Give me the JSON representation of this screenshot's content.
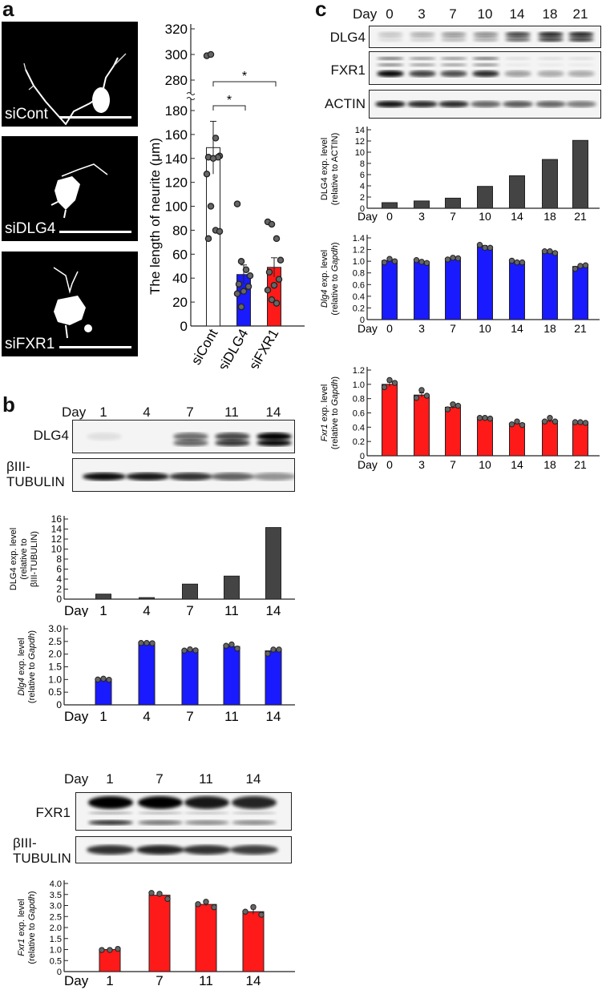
{
  "panels": {
    "a": {
      "letter": "a"
    },
    "b": {
      "letter": "b"
    },
    "c": {
      "letter": "c"
    }
  },
  "micrographs": [
    {
      "label": "siCont"
    },
    {
      "label": "siDLG4"
    },
    {
      "label": "siFXR1"
    }
  ],
  "blots": {
    "b_dlg4": {
      "day_label": "Day",
      "days": [
        "1",
        "4",
        "7",
        "11",
        "14"
      ],
      "rows": [
        "DLG4",
        "βIII-\nTUBULIN"
      ]
    },
    "b_fxr1": {
      "day_label": "Day",
      "days": [
        "1",
        "7",
        "11",
        "14"
      ],
      "rows": [
        "FXR1",
        "βIII-\nTUBULIN"
      ]
    },
    "c": {
      "day_label": "Day",
      "days": [
        "0",
        "3",
        "7",
        "10",
        "14",
        "18",
        "21"
      ],
      "rows": [
        "DLG4",
        "FXR1",
        "ACTIN"
      ]
    }
  },
  "colors": {
    "blue": "#1a1aff",
    "red": "#ff1a1a",
    "dark": "#444444",
    "dot": "#666666"
  },
  "chart_data": [
    {
      "id": "a_neurite",
      "type": "bar",
      "title": "",
      "ylabel": "The length of neurite (μm)",
      "categories": [
        "siCont",
        "siDLG4",
        "siFXR1"
      ],
      "values": [
        149,
        43,
        49
      ],
      "errors": [
        22,
        8,
        8
      ],
      "colors": [
        "#ffffff",
        "#1a1aff",
        "#ff1a1a"
      ],
      "points": [
        [
          299,
          300,
          157,
          142,
          141,
          141,
          140,
          127,
          100,
          80,
          79,
          73
        ],
        [
          102,
          54,
          47,
          42,
          35,
          33,
          29,
          27,
          16
        ],
        [
          87,
          85,
          73,
          55,
          45,
          39,
          34,
          30,
          22,
          19
        ]
      ],
      "yticks_lower": [
        0,
        20,
        40,
        60,
        80,
        100,
        120,
        140,
        160,
        180
      ],
      "yticks_upper": [
        280,
        300,
        320
      ],
      "axis_break": true,
      "significance": [
        {
          "from": "siCont",
          "to": "siDLG4",
          "label": "*"
        },
        {
          "from": "siCont",
          "to": "siFXR1",
          "label": "*"
        }
      ]
    },
    {
      "id": "b_dlg4_protein",
      "type": "bar",
      "ylabel": "DLG4 exp. level (relative to βIII-TUBULIN)",
      "xlabel": "Day",
      "categories": [
        "1",
        "4",
        "7",
        "11",
        "14"
      ],
      "values": [
        1.0,
        0.3,
        3.0,
        4.6,
        14.3
      ],
      "ylim": [
        0,
        16
      ],
      "yticks": [
        0,
        2,
        4,
        6,
        8,
        10,
        12,
        14,
        16
      ]
    },
    {
      "id": "b_dlg4_mrna",
      "type": "bar",
      "ylabel": "Dlg4 exp. level (relative to Gapdh)",
      "xlabel": "Day",
      "categories": [
        "1",
        "4",
        "7",
        "11",
        "14"
      ],
      "values": [
        1.0,
        2.43,
        2.16,
        2.3,
        2.13
      ],
      "errors": [
        0.02,
        0.01,
        0.02,
        0.04,
        0.05
      ],
      "points": [
        [
          1.0,
          1.03,
          0.99
        ],
        [
          2.44,
          2.44,
          2.43
        ],
        [
          2.14,
          2.19,
          2.15
        ],
        [
          2.33,
          2.38,
          2.22
        ],
        [
          2.02,
          2.18,
          2.18
        ]
      ],
      "ylim": [
        0,
        3.0
      ],
      "yticks": [
        "0",
        "0.5",
        "1.0",
        "1.5",
        "2.0",
        "2.5",
        "3.0"
      ]
    },
    {
      "id": "b_fxr1_mrna",
      "type": "bar",
      "ylabel": "Fxr1 exp. level (relative to Gapdh)",
      "xlabel": "Day",
      "categories": [
        "1",
        "7",
        "11",
        "14"
      ],
      "values": [
        1.0,
        3.47,
        3.05,
        2.72
      ],
      "errors": [
        0.02,
        0.08,
        0.07,
        0.12
      ],
      "points": [
        [
          0.98,
          0.98,
          1.03
        ],
        [
          3.57,
          3.53,
          3.3
        ],
        [
          3.06,
          3.17,
          2.92
        ],
        [
          2.72,
          2.93,
          2.58
        ]
      ],
      "ylim": [
        0,
        4.0
      ],
      "yticks": [
        "0",
        "0.5",
        "1.0",
        "1.5",
        "2.0",
        "2.5",
        "3.0",
        "3.5",
        "4.0"
      ]
    },
    {
      "id": "c_dlg4_protein",
      "type": "bar",
      "ylabel": "DLG4 exp. level (relative to ACTIN)",
      "xlabel": "Day",
      "categories": [
        "0",
        "3",
        "7",
        "10",
        "14",
        "18",
        "21"
      ],
      "values": [
        1.0,
        1.3,
        1.8,
        3.9,
        5.8,
        8.7,
        12.1
      ],
      "ylim": [
        0,
        14
      ],
      "yticks": [
        0,
        2,
        4,
        6,
        8,
        10,
        12,
        14
      ]
    },
    {
      "id": "c_dlg4_mrna",
      "type": "bar",
      "ylabel": "Dlg4 exp. level (relative to Gapdh)",
      "xlabel": "Day",
      "categories": [
        "0",
        "3",
        "7",
        "10",
        "14",
        "18",
        "21"
      ],
      "values": [
        1.01,
        0.99,
        1.05,
        1.25,
        0.99,
        1.16,
        0.91
      ],
      "errors": [
        0.02,
        0.01,
        0.01,
        0.02,
        0.01,
        0.01,
        0.02
      ],
      "points": [
        [
          0.98,
          1.04,
          1.0
        ],
        [
          1.02,
          0.99,
          0.97
        ],
        [
          1.03,
          1.06,
          1.05
        ],
        [
          1.28,
          1.23,
          1.23
        ],
        [
          1.01,
          0.98,
          0.98
        ],
        [
          1.17,
          1.17,
          1.14
        ],
        [
          0.87,
          0.92,
          0.93
        ]
      ],
      "ylim": [
        0,
        1.4
      ],
      "yticks": [
        "0",
        "0.2",
        "0.4",
        "0.6",
        "0.8",
        "1.0",
        "1.2",
        "1.4"
      ]
    },
    {
      "id": "c_fxr1_mrna",
      "type": "bar",
      "ylabel": "Fxr1 exp. level (relative to Gapdh)",
      "xlabel": "Day",
      "categories": [
        "0",
        "3",
        "7",
        "10",
        "14",
        "18",
        "21"
      ],
      "values": [
        1.0,
        0.85,
        0.68,
        0.52,
        0.45,
        0.49,
        0.46
      ],
      "errors": [
        0.03,
        0.03,
        0.02,
        0.01,
        0.01,
        0.02,
        0.01
      ],
      "points": [
        [
          0.96,
          1.06,
          1.02
        ],
        [
          0.81,
          0.92,
          0.84
        ],
        [
          0.65,
          0.72,
          0.7
        ],
        [
          0.53,
          0.53,
          0.52
        ],
        [
          0.44,
          0.48,
          0.43
        ],
        [
          0.48,
          0.53,
          0.48
        ],
        [
          0.47,
          0.47,
          0.46
        ]
      ],
      "ylim": [
        0,
        1.2
      ],
      "yticks": [
        "0",
        "0.2",
        "0.4",
        "0.6",
        "0.8",
        "1.0",
        "1.2"
      ]
    }
  ]
}
